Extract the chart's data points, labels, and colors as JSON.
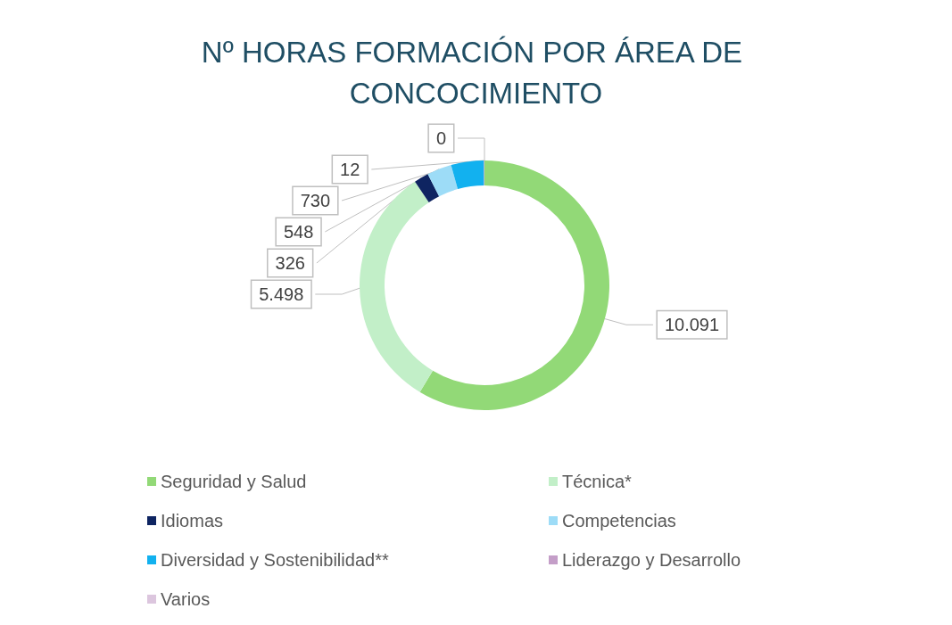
{
  "chart_data": {
    "type": "donut",
    "title": "Nº HORAS FORMACIÓN POR ÁREA DE CONCOCIMIENTO",
    "categories": [
      "Seguridad y Salud",
      "Técnica*",
      "Idiomas",
      "Competencias",
      "Diversidad y Sostenibilidad**",
      "Liderazgo y Desarrollo",
      "Varios"
    ],
    "values": [
      10091,
      5498,
      326,
      548,
      730,
      12,
      0
    ],
    "value_labels": [
      "10.091",
      "5.498",
      "326",
      "548",
      "730",
      "12",
      "0"
    ],
    "colors": [
      "#92d977",
      "#c2efc8",
      "#0e2461",
      "#9ddcf7",
      "#12b1ef",
      "#c49ec8",
      "#dcc6de"
    ],
    "legend": "bottom"
  }
}
